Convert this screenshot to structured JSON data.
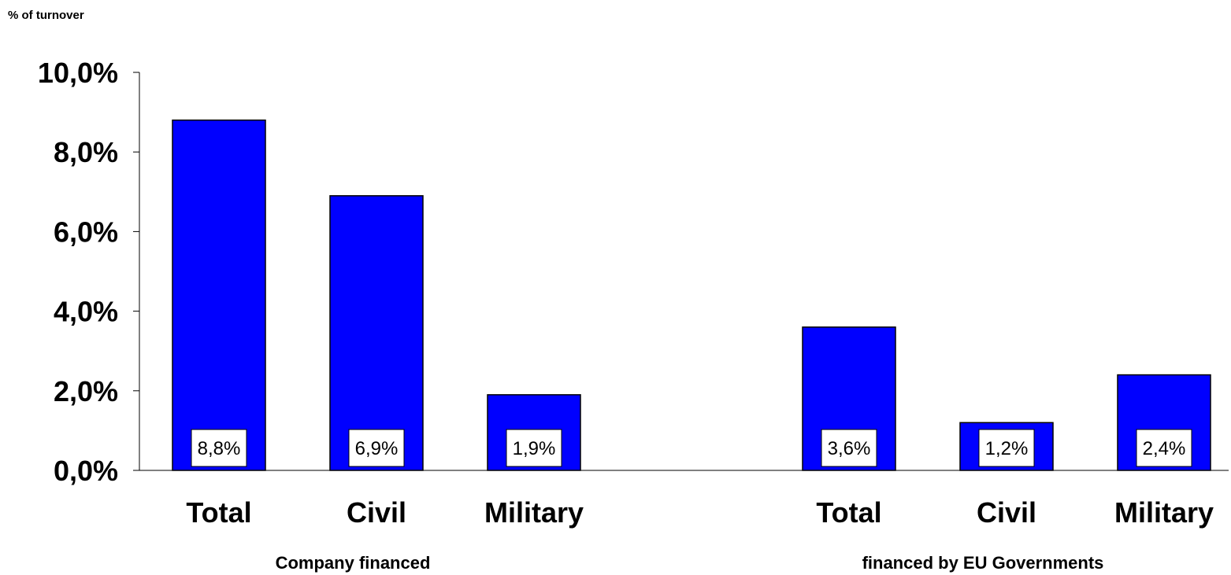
{
  "chart_data": {
    "type": "bar",
    "ylabel": "% of turnover",
    "ylim": [
      0,
      10
    ],
    "yticks": [
      "0,0%",
      "2,0%",
      "4,0%",
      "6,0%",
      "8,0%",
      "10,0%"
    ],
    "groups": [
      {
        "label": "Company financed",
        "categories": [
          "Total",
          "Civil",
          "Military"
        ],
        "values": [
          8.8,
          6.9,
          1.9
        ],
        "value_labels": [
          "8,8%",
          "6,9%",
          "1,9%"
        ]
      },
      {
        "label": "financed by EU Governments",
        "categories": [
          "Total",
          "Civil",
          "Military"
        ],
        "values": [
          3.6,
          1.2,
          2.4
        ],
        "value_labels": [
          "3,6%",
          "1,2%",
          "2,4%"
        ]
      }
    ],
    "bar_color": "#0000ff",
    "grid": false,
    "legend": "none"
  }
}
